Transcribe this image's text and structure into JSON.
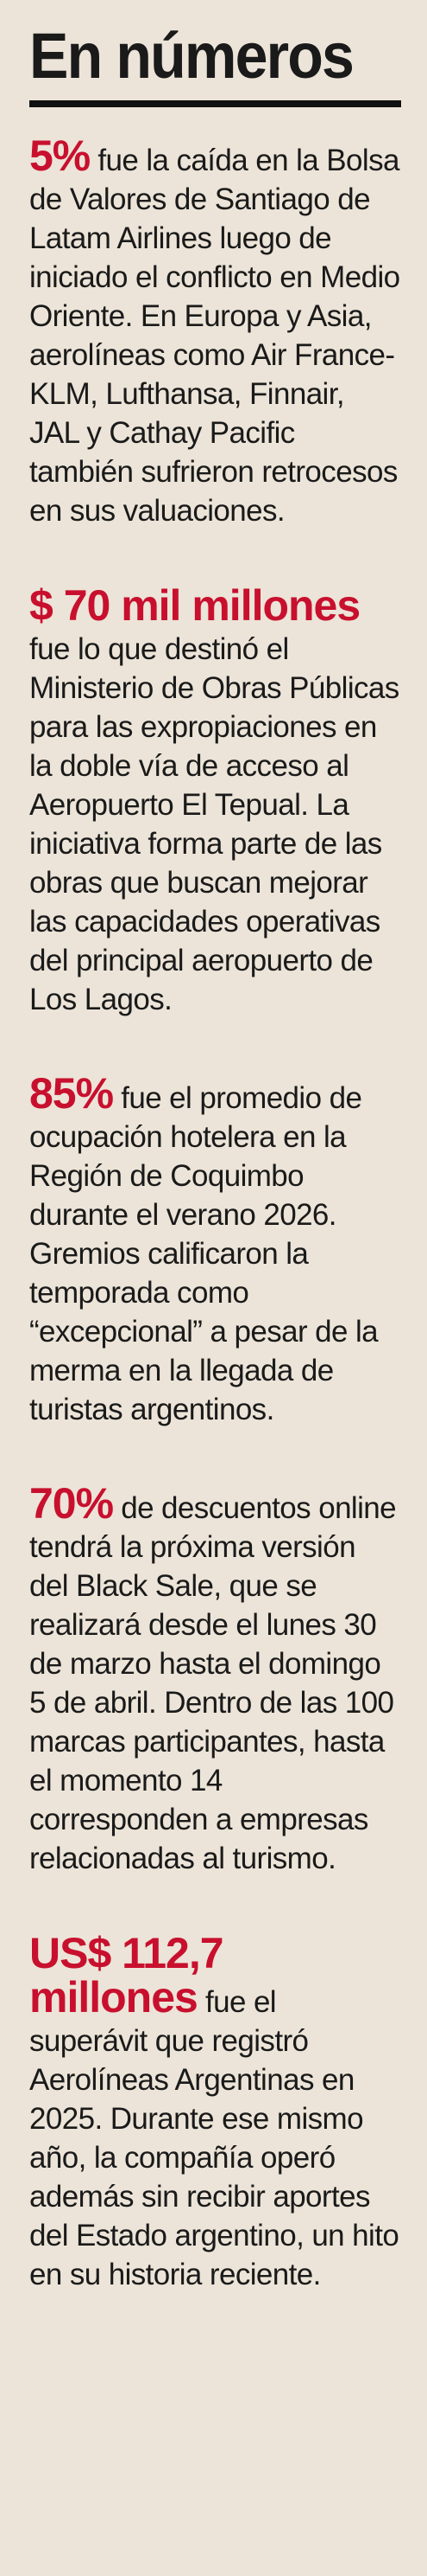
{
  "title": "En números",
  "colors": {
    "background": "#ece4d8",
    "accent": "#c8102e",
    "text": "#1a1a1a",
    "rule": "#111111"
  },
  "items": [
    {
      "figure": "5%",
      "text": " fue la caída en la Bolsa de Valores de Santiago de Latam Airlines luego de iniciado el conflicto en Medio Oriente. En Europa y Asia, aerolíneas como Air France-KLM, Lufthansa, Finnair, JAL y Cathay Pacific también sufrieron retrocesos en sus valuaciones."
    },
    {
      "figure": "$ 70 mil millones",
      "text": " fue lo que destinó el Ministerio de Obras Públicas para las expropiaciones en la doble vía de acceso al Aeropuerto El Tepual. La iniciativa forma parte de las obras que buscan mejorar las capacidades operativas del principal aeropuerto de Los Lagos."
    },
    {
      "figure": "85%",
      "text": " fue el promedio de ocupación hotelera en la Región de Coquimbo durante el verano 2026. Gremios calificaron la temporada como “excepcional” a pesar de la merma en la llegada de turistas argentinos."
    },
    {
      "figure": "70%",
      "text": " de descuentos online tendrá la próxima versión del Black Sale, que se realizará desde el lunes 30 de marzo hasta el domingo 5 de abril. Dentro de las 100 marcas participantes, hasta el momento 14 corresponden a empresas relacionadas al turismo."
    },
    {
      "figure": "US$ 112,7 millones",
      "text": " fue el superávit que registró Aerolíneas Argentinas en 2025. Durante ese mismo año, la compañía operó además sin recibir aportes del Estado argentino, un hito en su historia reciente."
    }
  ]
}
